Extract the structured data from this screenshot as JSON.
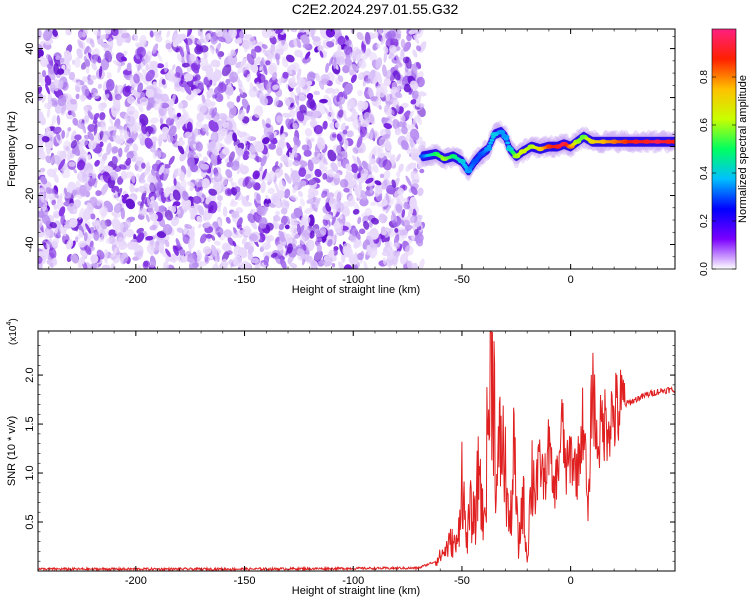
{
  "title": "C2E2.2024.297.01.55.G32",
  "chart_data": [
    {
      "type": "heatmap",
      "title": "C2E2.2024.297.01.55.G32",
      "xlabel": "Height of straight line (km)",
      "ylabel": "Frequency (Hz)",
      "xlim": [
        -245,
        48
      ],
      "ylim": [
        -50,
        48
      ],
      "xticks": [
        -200,
        -150,
        -100,
        -50,
        0
      ],
      "yticks": [
        -40,
        -20,
        0,
        20,
        40
      ],
      "noise_region_x": [
        -245,
        -68
      ],
      "noise_color": "#7a1fe0",
      "ridge": {
        "x": [
          -68,
          -62,
          -58,
          -54,
          -50,
          -47,
          -44,
          -41,
          -38,
          -35,
          -32,
          -30,
          -28,
          -25,
          -22,
          -18,
          -14,
          -10,
          -6,
          -3,
          0,
          3,
          6,
          10,
          15,
          20,
          25,
          30,
          35,
          40,
          45,
          48
        ],
        "freq": [
          -4,
          -3,
          -5,
          -4,
          -6,
          -10,
          -6,
          -3,
          -1,
          5,
          6,
          4,
          -1,
          -4,
          -2,
          0,
          -1,
          0,
          0,
          1,
          0,
          2,
          4,
          2,
          2,
          2,
          2,
          2,
          2,
          2,
          2,
          2
        ],
        "amplitude": [
          0.3,
          0.5,
          0.6,
          0.5,
          0.4,
          0.35,
          0.3,
          0.3,
          0.35,
          0.4,
          0.35,
          0.35,
          0.4,
          0.6,
          0.65,
          0.6,
          0.7,
          0.85,
          0.9,
          0.95,
          0.8,
          0.6,
          0.55,
          0.7,
          0.75,
          0.8,
          0.85,
          0.9,
          0.9,
          0.95,
          0.9,
          0.9
        ]
      },
      "colorbar": {
        "label": "Normalized spectral amplitude",
        "range": [
          0.0,
          1.0
        ],
        "ticks": [
          "0.0",
          "0.2",
          "0.4",
          "0.6",
          "0.8"
        ],
        "tick_values": [
          0.0,
          0.2,
          0.4,
          0.6,
          0.8
        ],
        "colors": [
          "#ffffff",
          "#7a00ff",
          "#0000ff",
          "#00c0ff",
          "#00ff60",
          "#c8ff00",
          "#ffc000",
          "#ff2000",
          "#ff2080"
        ]
      }
    },
    {
      "type": "line",
      "xlabel": "Height of straight line (km)",
      "ylabel": "SNR (10 * v/v)",
      "scale_label": "(x10",
      "scale_exponent": "4",
      "scale_suffix": ")",
      "xlim": [
        -245,
        48
      ],
      "ylim": [
        0,
        2.45
      ],
      "xticks": [
        -200,
        -150,
        -100,
        -50,
        0
      ],
      "yticks": [
        0.5,
        1.0,
        1.5,
        2.0
      ],
      "ytick_labels": [
        "0.5",
        "1.0",
        "1.5",
        "2.0"
      ],
      "color": "#e02020",
      "x": [
        -245,
        -150,
        -70,
        -62,
        -58,
        -55,
        -52,
        -50,
        -48,
        -46,
        -44,
        -42,
        -40,
        -38,
        -36,
        -34,
        -32,
        -30,
        -28,
        -26,
        -24,
        -22,
        -20,
        -18,
        -16,
        -14,
        -12,
        -10,
        -8,
        -6,
        -4,
        -2,
        0,
        3,
        6,
        8,
        10,
        12,
        15,
        20,
        25,
        30,
        35,
        40,
        45,
        48
      ],
      "y": [
        0.02,
        0.02,
        0.03,
        0.1,
        0.2,
        0.3,
        0.25,
        1.0,
        0.3,
        0.6,
        0.5,
        1.1,
        0.4,
        1.5,
        2.45,
        0.8,
        1.4,
        1.0,
        0.4,
        1.2,
        0.2,
        0.8,
        0.1,
        1.0,
        0.9,
        1.1,
        0.9,
        1.3,
        0.8,
        1.0,
        1.5,
        1.0,
        1.2,
        1.0,
        1.6,
        0.5,
        2.0,
        1.3,
        1.5,
        1.6,
        1.7,
        1.75,
        1.8,
        1.83,
        1.85,
        1.84
      ]
    }
  ]
}
